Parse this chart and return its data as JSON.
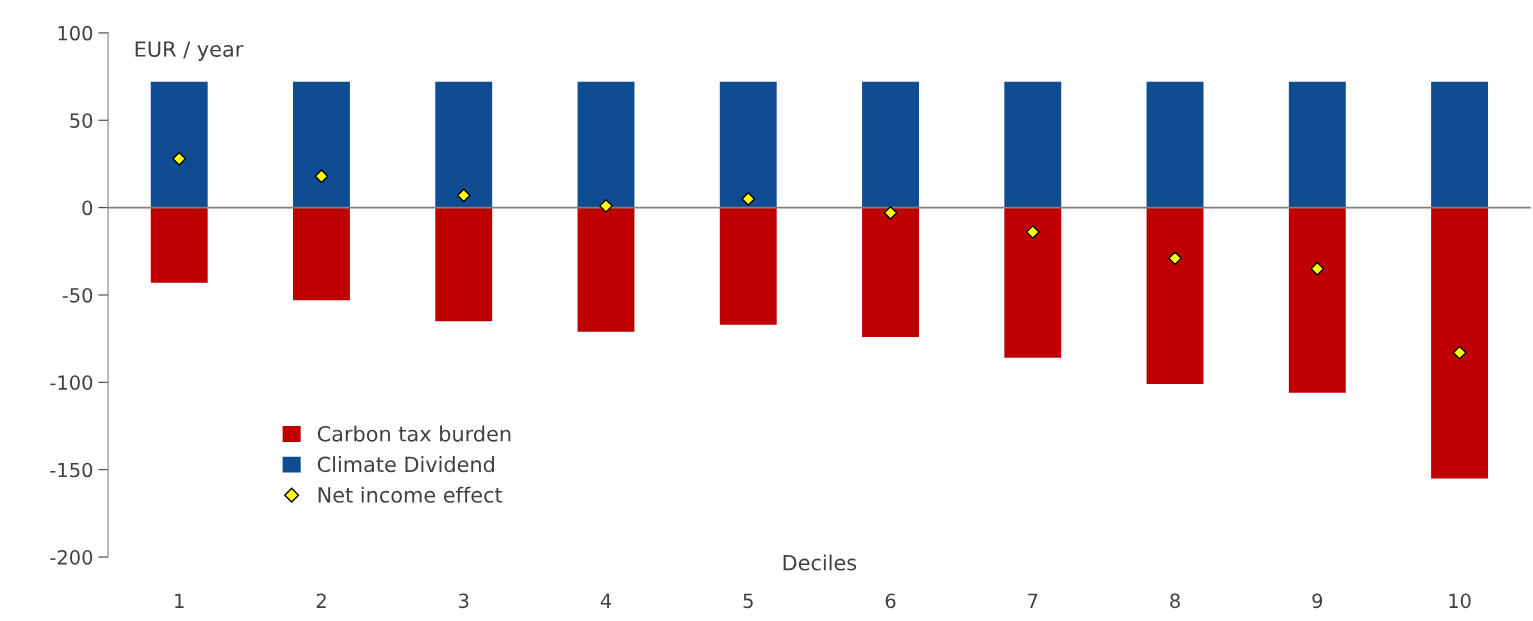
{
  "chart_data": {
    "type": "bar",
    "stacked": true,
    "ylabel": "EUR / year",
    "xlabel": "Deciles",
    "categories": [
      "1",
      "2",
      "3",
      "4",
      "5",
      "6",
      "7",
      "8",
      "9",
      "10"
    ],
    "series": [
      {
        "name": "Carbon tax burden",
        "color": "#c00000",
        "values": [
          -43,
          -53,
          -65,
          -71,
          -67,
          -74,
          -86,
          -101,
          -106,
          -155
        ]
      },
      {
        "name": "Climate Dividend",
        "color": "#0f4c92",
        "values": [
          72,
          72,
          72,
          72,
          72,
          72,
          72,
          72,
          72,
          72
        ]
      },
      {
        "name": "Net income effect",
        "type": "scatter",
        "marker": "diamond",
        "color": "#ffff00",
        "x": [
          "1",
          "2",
          "3",
          "4",
          "5",
          "6",
          "7",
          "8",
          "9",
          "10"
        ],
        "values": [
          28,
          18,
          7,
          1,
          5,
          -3,
          -14,
          -29,
          -35,
          -83
        ]
      }
    ],
    "ylim": [
      -200,
      100
    ],
    "yticks": [
      -200,
      -150,
      -100,
      -50,
      0,
      50,
      100
    ],
    "grid": false,
    "ref_lines": [
      {
        "axis": "y",
        "value": 0,
        "color": "#808080"
      }
    ],
    "legend": "bottom left"
  }
}
